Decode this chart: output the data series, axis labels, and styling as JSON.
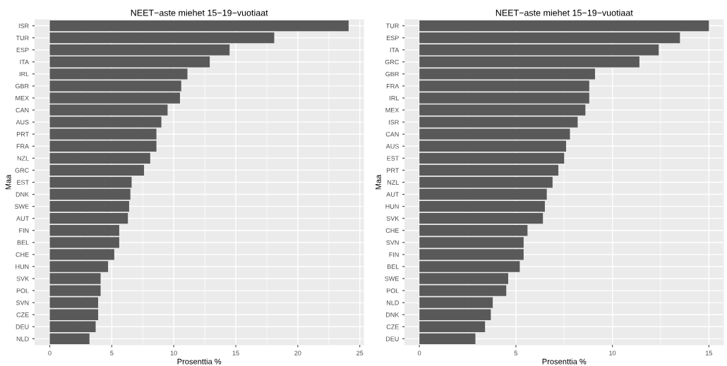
{
  "chart_data": [
    {
      "type": "bar",
      "orientation": "horizontal",
      "title": "NEET−aste miehet 15−19−vuotiaat",
      "xlabel": "Prosenttia %",
      "ylabel": "Maa",
      "color": "#595959",
      "grid": true,
      "xlim": [
        -1.2,
        25.3
      ],
      "xticks": [
        0,
        5,
        10,
        15,
        20,
        25
      ],
      "categories": [
        "ISR",
        "TUR",
        "ESP",
        "ITA",
        "IRL",
        "GBR",
        "MEX",
        "CAN",
        "AUS",
        "PRT",
        "FRA",
        "NZL",
        "GRC",
        "EST",
        "DNK",
        "SWE",
        "AUT",
        "FIN",
        "BEL",
        "CHE",
        "HUN",
        "SVK",
        "POL",
        "SVN",
        "CZE",
        "DEU",
        "NLD"
      ],
      "values": [
        24.1,
        18.1,
        14.5,
        12.9,
        11.1,
        10.6,
        10.5,
        9.5,
        9.0,
        8.6,
        8.6,
        8.1,
        7.6,
        6.6,
        6.5,
        6.4,
        6.3,
        5.6,
        5.6,
        5.2,
        4.7,
        4.1,
        4.1,
        3.9,
        3.9,
        3.7,
        3.2
      ]
    },
    {
      "type": "bar",
      "orientation": "horizontal",
      "title": "NEET−aste miehet 15−19−vuotiaat",
      "xlabel": "Prosenttia %",
      "ylabel": "Maa",
      "color": "#595959",
      "grid": true,
      "xlim": [
        -0.75,
        15.75
      ],
      "xticks": [
        0,
        5,
        10,
        15
      ],
      "categories": [
        "TUR",
        "ESP",
        "ITA",
        "GRC",
        "GBR",
        "FRA",
        "IRL",
        "MEX",
        "ISR",
        "CAN",
        "AUS",
        "EST",
        "PRT",
        "NZL",
        "AUT",
        "HUN",
        "SVK",
        "CHE",
        "SVN",
        "FIN",
        "BEL",
        "SWE",
        "POL",
        "NLD",
        "DNK",
        "CZE",
        "DEU"
      ],
      "values": [
        15.0,
        13.5,
        12.4,
        11.4,
        9.1,
        8.8,
        8.8,
        8.6,
        8.2,
        7.8,
        7.6,
        7.5,
        7.2,
        6.9,
        6.6,
        6.5,
        6.4,
        5.6,
        5.4,
        5.4,
        5.2,
        4.6,
        4.5,
        3.8,
        3.7,
        3.4,
        2.9
      ]
    }
  ]
}
